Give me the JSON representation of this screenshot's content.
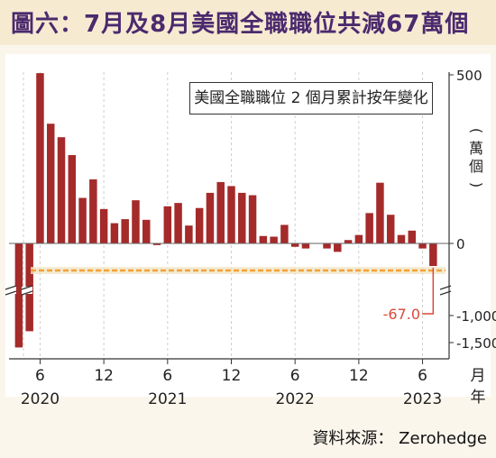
{
  "title": "圖六：7月及8月美國全職職位共減67萬個",
  "source": "資料來源： Zerohedge",
  "chart_data": {
    "type": "bar",
    "legend_text": "美國全職職位 2 個月累計按年變化",
    "y_unit": "(萬個)",
    "x_unit_month": "月",
    "x_unit_year": "年",
    "y_ticks": [
      "500",
      "0",
      "-1,000",
      "-1,500"
    ],
    "y_tick_values": [
      500,
      0,
      -1000,
      -1500
    ],
    "axis_break": true,
    "months": [
      "2020-04",
      "2020-05",
      "2020-06",
      "2020-07",
      "2020-08",
      "2020-09",
      "2020-10",
      "2020-11",
      "2020-12",
      "2021-01",
      "2021-02",
      "2021-03",
      "2021-04",
      "2021-05",
      "2021-06",
      "2021-07",
      "2021-08",
      "2021-09",
      "2021-10",
      "2021-11",
      "2021-12",
      "2022-01",
      "2022-02",
      "2022-03",
      "2022-04",
      "2022-05",
      "2022-06",
      "2022-07",
      "2022-08",
      "2022-09",
      "2022-10",
      "2022-11",
      "2022-12",
      "2023-01",
      "2023-02",
      "2023-03",
      "2023-04",
      "2023-05",
      "2023-06",
      "2023-07",
      "2023-08"
    ],
    "values": [
      -1590,
      -1290,
      505,
      355,
      315,
      262,
      135,
      190,
      102,
      60,
      72,
      128,
      70,
      -5,
      110,
      120,
      53,
      105,
      150,
      182,
      170,
      150,
      143,
      22,
      20,
      55,
      -10,
      -15,
      0,
      -15,
      -25,
      10,
      25,
      90,
      180,
      85,
      25,
      38,
      -15,
      -67,
      0
    ],
    "x_tick_labels": [
      {
        "month": "6",
        "year": "2020",
        "index": 2
      },
      {
        "month": "12",
        "year": "",
        "index": 8
      },
      {
        "month": "6",
        "year": "2021",
        "index": 14
      },
      {
        "month": "12",
        "year": "",
        "index": 20
      },
      {
        "month": "6",
        "year": "2022",
        "index": 26
      },
      {
        "month": "12",
        "year": "",
        "index": 32
      },
      {
        "month": "6",
        "year": "2023",
        "index": 38
      }
    ],
    "annotation": {
      "value": -67,
      "label": "-67.0",
      "index": 39
    },
    "colors": {
      "bar": "#a52a2a",
      "highlight_line": "#f2a23a",
      "annotation": "#d94a3a"
    }
  }
}
